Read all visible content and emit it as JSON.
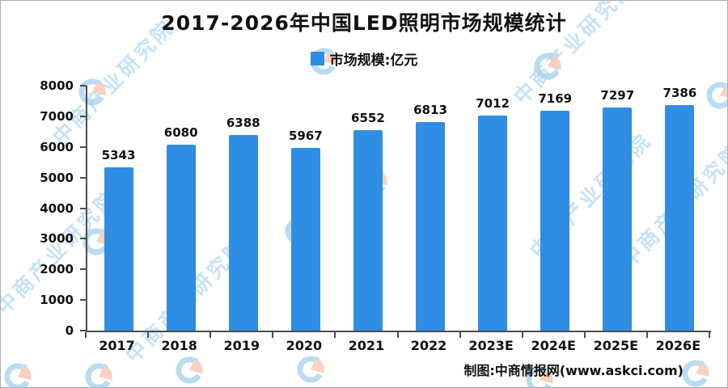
{
  "chart_data": {
    "type": "bar",
    "title": "2017-2026年中国LED照明市场规模统计",
    "legend": {
      "label": "市场规模:亿元",
      "position": "top-center"
    },
    "series_name": "市场规模",
    "unit": "亿元",
    "categories": [
      "2017",
      "2018",
      "2019",
      "2020",
      "2021",
      "2022",
      "2023E",
      "2024E",
      "2025E",
      "2026E"
    ],
    "values": [
      5343,
      6080,
      6388,
      5967,
      6552,
      6813,
      7012,
      7169,
      7297,
      7386
    ],
    "ylim": [
      0,
      8000
    ],
    "yticks": [
      0,
      1000,
      2000,
      3000,
      4000,
      5000,
      6000,
      7000,
      8000
    ],
    "grid": false,
    "value_labels": true,
    "colors": {
      "bar": "#2F8DE3",
      "axis": "#4d4d4d",
      "text": "#111111"
    }
  },
  "footer": {
    "credit": "制图:中商情报网(www.askci.com)"
  },
  "watermark": {
    "text": "中商产业研究院",
    "text_color": "#BDDDF4",
    "logo_blue": "#A9D4F0",
    "logo_salmon": "#F6C7B2"
  }
}
